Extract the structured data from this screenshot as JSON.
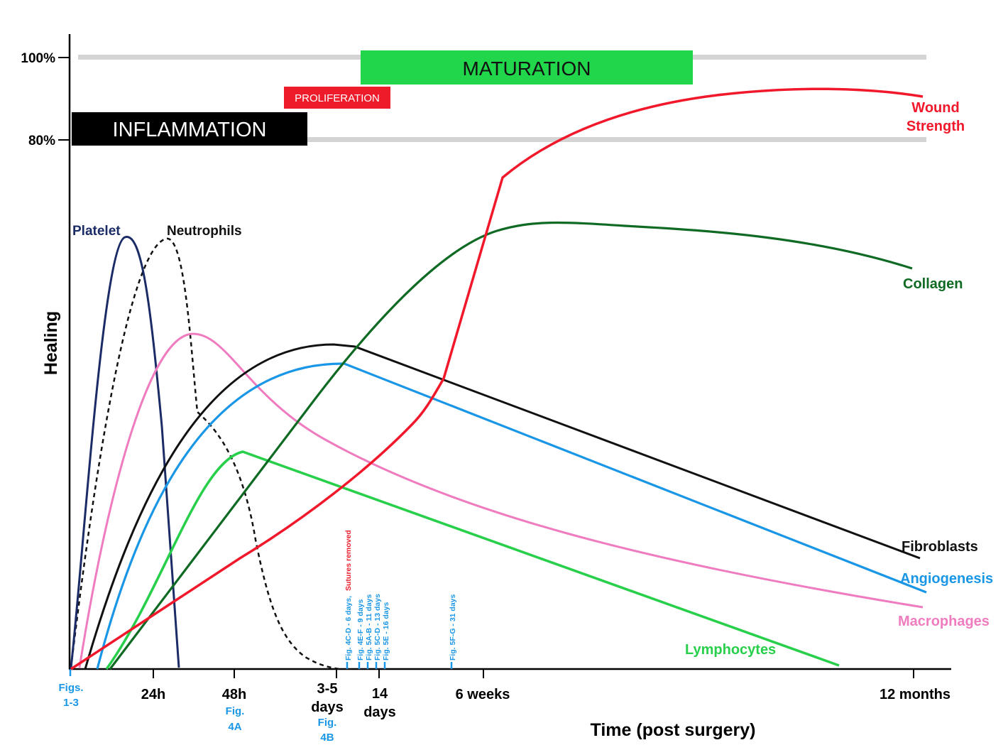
{
  "chart_data": {
    "type": "line",
    "xlabel": "Time (post surgery)",
    "ylabel": "Healing",
    "y_ticks": [
      "100%",
      "80%"
    ],
    "x_ticks": [
      {
        "lines": [
          "24h"
        ]
      },
      {
        "lines": [
          "48h"
        ]
      },
      {
        "lines": [
          "3-5",
          "days"
        ]
      },
      {
        "lines": [
          "14",
          "days"
        ]
      },
      {
        "lines": [
          "6 weeks"
        ]
      },
      {
        "lines": [
          "12 months"
        ]
      }
    ],
    "figure_refs_bottom": [
      "Figs.",
      "1-3",
      "Fig.",
      "4A",
      "Fig.",
      "4B"
    ],
    "figure_refs_vertical": [
      "Fig. 4C-D - 6 days,",
      "Sutures removed",
      "Fig. 4E-F - 9 days",
      "Fig. 5A-B - 11 days",
      "Fig. 5C-D - 13 days",
      "Fig. 5E - 16 days",
      "Fig. 5F-G - 31 days"
    ],
    "phases": [
      "INFLAMMATION",
      "PROLIFERATION",
      "MATURATION"
    ],
    "series": [
      {
        "name": "Platelet",
        "color": "#1a2b66"
      },
      {
        "name": "Neutrophils",
        "color": "#111111"
      },
      {
        "name": "Macrophages",
        "color": "#f07cc0"
      },
      {
        "name": "Fibroblasts",
        "color": "#111111"
      },
      {
        "name": "Angiogenesis",
        "color": "#1a96e6"
      },
      {
        "name": "Lymphocytes",
        "color": "#28cf4a"
      },
      {
        "name": "Collagen",
        "color": "#0f6a23"
      },
      {
        "name": "Wound Strength",
        "color": "#f0182a"
      }
    ],
    "wound_strength_label": [
      "Wound",
      "Strength"
    ]
  }
}
